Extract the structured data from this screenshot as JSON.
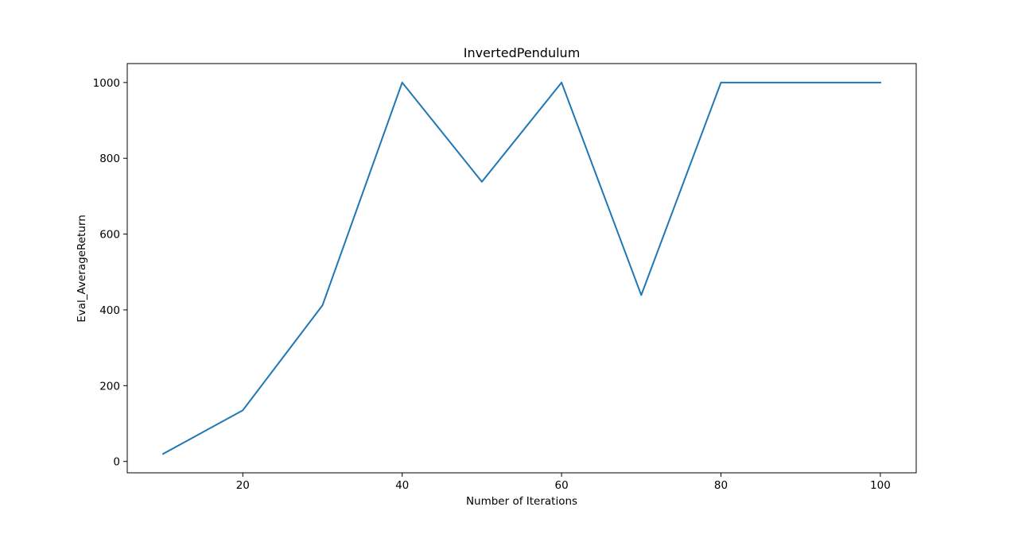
{
  "chart_data": {
    "type": "line",
    "title": "InvertedPendulum",
    "xlabel": "Number of Iterations",
    "ylabel": "Eval_AverageReturn",
    "xlim": [
      5.5,
      104.5
    ],
    "ylim": [
      -30,
      1050
    ],
    "xticks": [
      20,
      40,
      60,
      80,
      100
    ],
    "yticks": [
      0,
      200,
      400,
      600,
      800,
      1000
    ],
    "grid": false,
    "series": [
      {
        "color": "#1f77b4",
        "x": [
          10,
          20,
          30,
          40,
          50,
          60,
          70,
          80,
          90,
          100
        ],
        "y": [
          20,
          135,
          412,
          1000,
          738,
          1000,
          439,
          1000,
          1000,
          1000
        ]
      }
    ]
  }
}
